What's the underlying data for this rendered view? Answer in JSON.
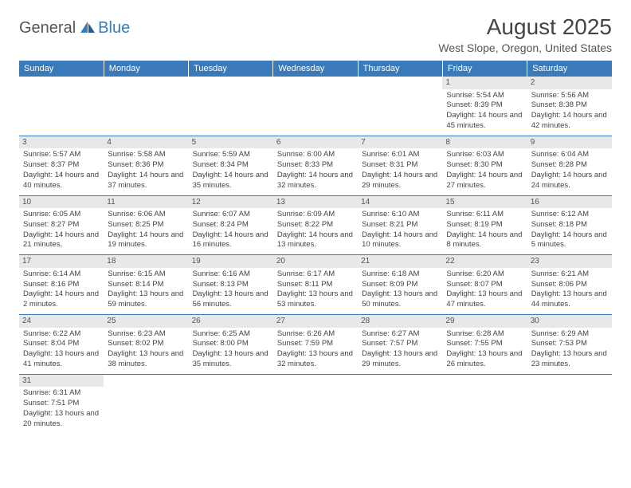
{
  "brand": {
    "part1": "General",
    "part2": "Blue"
  },
  "title": "August 2025",
  "location": "West Slope, Oregon, United States",
  "day_headers": [
    "Sunday",
    "Monday",
    "Tuesday",
    "Wednesday",
    "Thursday",
    "Friday",
    "Saturday"
  ],
  "colors": {
    "header_bg": "#3a7ab8",
    "daynum_bg": "#e8e8e8",
    "text": "#444444"
  },
  "weeks": [
    [
      {
        "n": "",
        "sr": "",
        "ss": "",
        "dl": ""
      },
      {
        "n": "",
        "sr": "",
        "ss": "",
        "dl": ""
      },
      {
        "n": "",
        "sr": "",
        "ss": "",
        "dl": ""
      },
      {
        "n": "",
        "sr": "",
        "ss": "",
        "dl": ""
      },
      {
        "n": "",
        "sr": "",
        "ss": "",
        "dl": ""
      },
      {
        "n": "1",
        "sr": "Sunrise: 5:54 AM",
        "ss": "Sunset: 8:39 PM",
        "dl": "Daylight: 14 hours and 45 minutes."
      },
      {
        "n": "2",
        "sr": "Sunrise: 5:56 AM",
        "ss": "Sunset: 8:38 PM",
        "dl": "Daylight: 14 hours and 42 minutes."
      }
    ],
    [
      {
        "n": "3",
        "sr": "Sunrise: 5:57 AM",
        "ss": "Sunset: 8:37 PM",
        "dl": "Daylight: 14 hours and 40 minutes."
      },
      {
        "n": "4",
        "sr": "Sunrise: 5:58 AM",
        "ss": "Sunset: 8:36 PM",
        "dl": "Daylight: 14 hours and 37 minutes."
      },
      {
        "n": "5",
        "sr": "Sunrise: 5:59 AM",
        "ss": "Sunset: 8:34 PM",
        "dl": "Daylight: 14 hours and 35 minutes."
      },
      {
        "n": "6",
        "sr": "Sunrise: 6:00 AM",
        "ss": "Sunset: 8:33 PM",
        "dl": "Daylight: 14 hours and 32 minutes."
      },
      {
        "n": "7",
        "sr": "Sunrise: 6:01 AM",
        "ss": "Sunset: 8:31 PM",
        "dl": "Daylight: 14 hours and 29 minutes."
      },
      {
        "n": "8",
        "sr": "Sunrise: 6:03 AM",
        "ss": "Sunset: 8:30 PM",
        "dl": "Daylight: 14 hours and 27 minutes."
      },
      {
        "n": "9",
        "sr": "Sunrise: 6:04 AM",
        "ss": "Sunset: 8:28 PM",
        "dl": "Daylight: 14 hours and 24 minutes."
      }
    ],
    [
      {
        "n": "10",
        "sr": "Sunrise: 6:05 AM",
        "ss": "Sunset: 8:27 PM",
        "dl": "Daylight: 14 hours and 21 minutes."
      },
      {
        "n": "11",
        "sr": "Sunrise: 6:06 AM",
        "ss": "Sunset: 8:25 PM",
        "dl": "Daylight: 14 hours and 19 minutes."
      },
      {
        "n": "12",
        "sr": "Sunrise: 6:07 AM",
        "ss": "Sunset: 8:24 PM",
        "dl": "Daylight: 14 hours and 16 minutes."
      },
      {
        "n": "13",
        "sr": "Sunrise: 6:09 AM",
        "ss": "Sunset: 8:22 PM",
        "dl": "Daylight: 14 hours and 13 minutes."
      },
      {
        "n": "14",
        "sr": "Sunrise: 6:10 AM",
        "ss": "Sunset: 8:21 PM",
        "dl": "Daylight: 14 hours and 10 minutes."
      },
      {
        "n": "15",
        "sr": "Sunrise: 6:11 AM",
        "ss": "Sunset: 8:19 PM",
        "dl": "Daylight: 14 hours and 8 minutes."
      },
      {
        "n": "16",
        "sr": "Sunrise: 6:12 AM",
        "ss": "Sunset: 8:18 PM",
        "dl": "Daylight: 14 hours and 5 minutes."
      }
    ],
    [
      {
        "n": "17",
        "sr": "Sunrise: 6:14 AM",
        "ss": "Sunset: 8:16 PM",
        "dl": "Daylight: 14 hours and 2 minutes."
      },
      {
        "n": "18",
        "sr": "Sunrise: 6:15 AM",
        "ss": "Sunset: 8:14 PM",
        "dl": "Daylight: 13 hours and 59 minutes."
      },
      {
        "n": "19",
        "sr": "Sunrise: 6:16 AM",
        "ss": "Sunset: 8:13 PM",
        "dl": "Daylight: 13 hours and 56 minutes."
      },
      {
        "n": "20",
        "sr": "Sunrise: 6:17 AM",
        "ss": "Sunset: 8:11 PM",
        "dl": "Daylight: 13 hours and 53 minutes."
      },
      {
        "n": "21",
        "sr": "Sunrise: 6:18 AM",
        "ss": "Sunset: 8:09 PM",
        "dl": "Daylight: 13 hours and 50 minutes."
      },
      {
        "n": "22",
        "sr": "Sunrise: 6:20 AM",
        "ss": "Sunset: 8:07 PM",
        "dl": "Daylight: 13 hours and 47 minutes."
      },
      {
        "n": "23",
        "sr": "Sunrise: 6:21 AM",
        "ss": "Sunset: 8:06 PM",
        "dl": "Daylight: 13 hours and 44 minutes."
      }
    ],
    [
      {
        "n": "24",
        "sr": "Sunrise: 6:22 AM",
        "ss": "Sunset: 8:04 PM",
        "dl": "Daylight: 13 hours and 41 minutes."
      },
      {
        "n": "25",
        "sr": "Sunrise: 6:23 AM",
        "ss": "Sunset: 8:02 PM",
        "dl": "Daylight: 13 hours and 38 minutes."
      },
      {
        "n": "26",
        "sr": "Sunrise: 6:25 AM",
        "ss": "Sunset: 8:00 PM",
        "dl": "Daylight: 13 hours and 35 minutes."
      },
      {
        "n": "27",
        "sr": "Sunrise: 6:26 AM",
        "ss": "Sunset: 7:59 PM",
        "dl": "Daylight: 13 hours and 32 minutes."
      },
      {
        "n": "28",
        "sr": "Sunrise: 6:27 AM",
        "ss": "Sunset: 7:57 PM",
        "dl": "Daylight: 13 hours and 29 minutes."
      },
      {
        "n": "29",
        "sr": "Sunrise: 6:28 AM",
        "ss": "Sunset: 7:55 PM",
        "dl": "Daylight: 13 hours and 26 minutes."
      },
      {
        "n": "30",
        "sr": "Sunrise: 6:29 AM",
        "ss": "Sunset: 7:53 PM",
        "dl": "Daylight: 13 hours and 23 minutes."
      }
    ],
    [
      {
        "n": "31",
        "sr": "Sunrise: 6:31 AM",
        "ss": "Sunset: 7:51 PM",
        "dl": "Daylight: 13 hours and 20 minutes."
      },
      {
        "n": "",
        "sr": "",
        "ss": "",
        "dl": ""
      },
      {
        "n": "",
        "sr": "",
        "ss": "",
        "dl": ""
      },
      {
        "n": "",
        "sr": "",
        "ss": "",
        "dl": ""
      },
      {
        "n": "",
        "sr": "",
        "ss": "",
        "dl": ""
      },
      {
        "n": "",
        "sr": "",
        "ss": "",
        "dl": ""
      },
      {
        "n": "",
        "sr": "",
        "ss": "",
        "dl": ""
      }
    ]
  ]
}
